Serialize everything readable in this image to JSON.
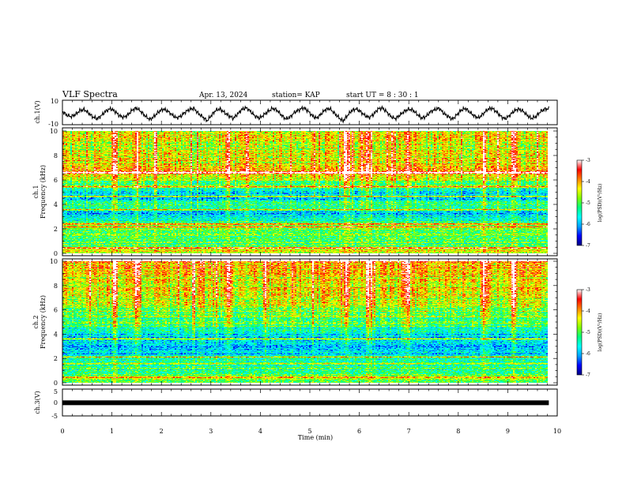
{
  "header": {
    "title": "VLF Spectra",
    "date": "Apr. 13, 2024",
    "station": "station= KAP",
    "start": "start  UT =   8  : 30 : 1"
  },
  "colors": {
    "colormap": [
      "#000080",
      "#0000ff",
      "#00a0ff",
      "#00ffff",
      "#00ff80",
      "#80ff00",
      "#ffff00",
      "#ff8000",
      "#ff0000",
      "#ffffff"
    ]
  },
  "chart_data": [
    {
      "type": "line",
      "panel": "ch1-waveform",
      "ylabel": "ch.1(V)",
      "ylim": [
        -10,
        10
      ],
      "yticks": [
        "10",
        "-10"
      ],
      "x_range_min": [
        0,
        9.83
      ],
      "series": [
        {
          "values": [
            0.8,
            -2.2,
            -3.4,
            -1.5,
            1.6,
            2.4,
            -0.6,
            -3.8,
            -5.2,
            -2.1,
            1.4,
            3.1,
            0.9,
            -2.6,
            -4.1,
            -1.7,
            2.2,
            3.6,
            0.4,
            -3.3,
            -5.8,
            -2.9,
            0.7,
            2.8,
            1.2,
            -1.9,
            -4.4,
            -3.1,
            0.3,
            2.5,
            3.3,
            -0.8,
            -3.6,
            -6.9,
            -2.4,
            1.8,
            2.9,
            -0.2,
            -2.8,
            -4.9,
            -1.2,
            2.6,
            3.8,
            0.6,
            -3.1,
            -4.6,
            -1.8,
            1.1,
            3.4,
            1.7,
            -2.3,
            -5.4,
            -3.6,
            0.2,
            2.1,
            3.9,
            1.3,
            -2.6,
            -4.8,
            -1.4,
            2.4,
            3.2,
            -0.4,
            -3.9,
            -7.2,
            -2.7,
            1.5,
            3.0,
            0.8,
            -2.4,
            -4.2,
            -1.6,
            2.8,
            3.7,
            0.5,
            -3.4,
            -5.1,
            -2.2,
            0.9,
            2.7,
            1.9,
            -1.6,
            -4.7,
            -3.2,
            0.6,
            2.3,
            3.5,
            -0.7,
            -3.2,
            -5.6,
            -2.0,
            1.9,
            3.3,
            0.1,
            -2.9,
            -4.5,
            -1.1,
            2.5,
            3.6,
            0.7,
            -3.0,
            -5.3,
            -2.6,
            1.0,
            2.9,
            1.4,
            -2.1,
            -4.9,
            -3.5,
            0.4,
            2.6,
            3.1
          ]
        }
      ]
    },
    {
      "type": "heatmap",
      "panel": "ch1-spectrogram",
      "ylabel": "ch.1\nFrequency (kHz)",
      "ylim": [
        0,
        10
      ],
      "yticks": [
        "0",
        "2",
        "4",
        "6",
        "8",
        "10"
      ],
      "x_range_min": [
        0,
        9.83
      ],
      "colorbar": {
        "label": "log(PSD)(V²/Hz)",
        "range": [
          -7,
          -3
        ],
        "ticks": [
          "-3",
          "-4",
          "-5",
          "-6",
          "-7"
        ]
      },
      "profile": {
        "freq_khz": [
          0.25,
          0.75,
          1.25,
          1.75,
          2.25,
          2.75,
          3.25,
          3.75,
          4.25,
          4.75,
          5.25,
          5.75,
          6.25,
          6.75,
          7.25,
          7.75,
          8.25,
          8.75,
          9.25,
          9.75
        ],
        "mean_log_psd": [
          -4.5,
          -5.1,
          -5.0,
          -5.1,
          -4.7,
          -5.5,
          -5.9,
          -5.2,
          -5.5,
          -6.0,
          -5.4,
          -5.1,
          -4.6,
          -3.9,
          -4.3,
          -4.4,
          -4.5,
          -4.6,
          -4.4,
          -4.5
        ]
      },
      "bright_line_khz": [
        0.4,
        2.15,
        2.4,
        3.55,
        4.65,
        5.45,
        6.6
      ],
      "burst_min": [
        1.05,
        1.5,
        3.35,
        5.75,
        6.2,
        7.0,
        8.55,
        9.15
      ]
    },
    {
      "type": "heatmap",
      "panel": "ch2-spectrogram",
      "ylabel": "ch.2\nFrequency (kHz)",
      "ylim": [
        0,
        10
      ],
      "yticks": [
        "0",
        "2",
        "4",
        "6",
        "8",
        "10"
      ],
      "x_range_min": [
        0,
        9.83
      ],
      "colorbar": {
        "label": "log(PSD)(V²/Hz)",
        "range": [
          -7,
          -3
        ],
        "ticks": [
          "-3",
          "-4",
          "-5",
          "-6",
          "-7"
        ]
      },
      "profile": {
        "freq_khz": [
          0.25,
          0.75,
          1.25,
          1.75,
          2.25,
          2.75,
          3.25,
          3.75,
          4.25,
          4.75,
          5.25,
          5.75,
          6.25,
          6.75,
          7.25,
          7.75,
          8.25,
          8.75,
          9.25,
          9.75
        ],
        "mean_log_psd": [
          -4.9,
          -5.3,
          -5.3,
          -5.4,
          -5.6,
          -6.1,
          -5.7,
          -5.9,
          -5.5,
          -5.1,
          -5.0,
          -4.8,
          -4.7,
          -4.6,
          -4.4,
          -4.3,
          -4.4,
          -4.3,
          -4.2,
          -4.1
        ]
      },
      "bright_line_khz": [
        0.4,
        1.55,
        2.1,
        3.6
      ],
      "burst_min": [
        1.05,
        1.5,
        3.35,
        5.75,
        6.2,
        7.0,
        8.55,
        9.15
      ]
    },
    {
      "type": "line",
      "panel": "ch3-waveform",
      "ylabel": "ch.3(V)",
      "ylim": [
        -5,
        5
      ],
      "yticks": [
        "5",
        "0",
        "-5"
      ],
      "x_range_min": [
        0,
        9.83
      ],
      "series": [
        {
          "values": [
            -0.1,
            -0.1
          ]
        }
      ]
    }
  ],
  "xaxis": {
    "label": "Time (min)",
    "range": [
      0,
      10
    ],
    "ticks": [
      "0",
      "1",
      "2",
      "3",
      "4",
      "5",
      "6",
      "7",
      "8",
      "9",
      "10"
    ]
  }
}
